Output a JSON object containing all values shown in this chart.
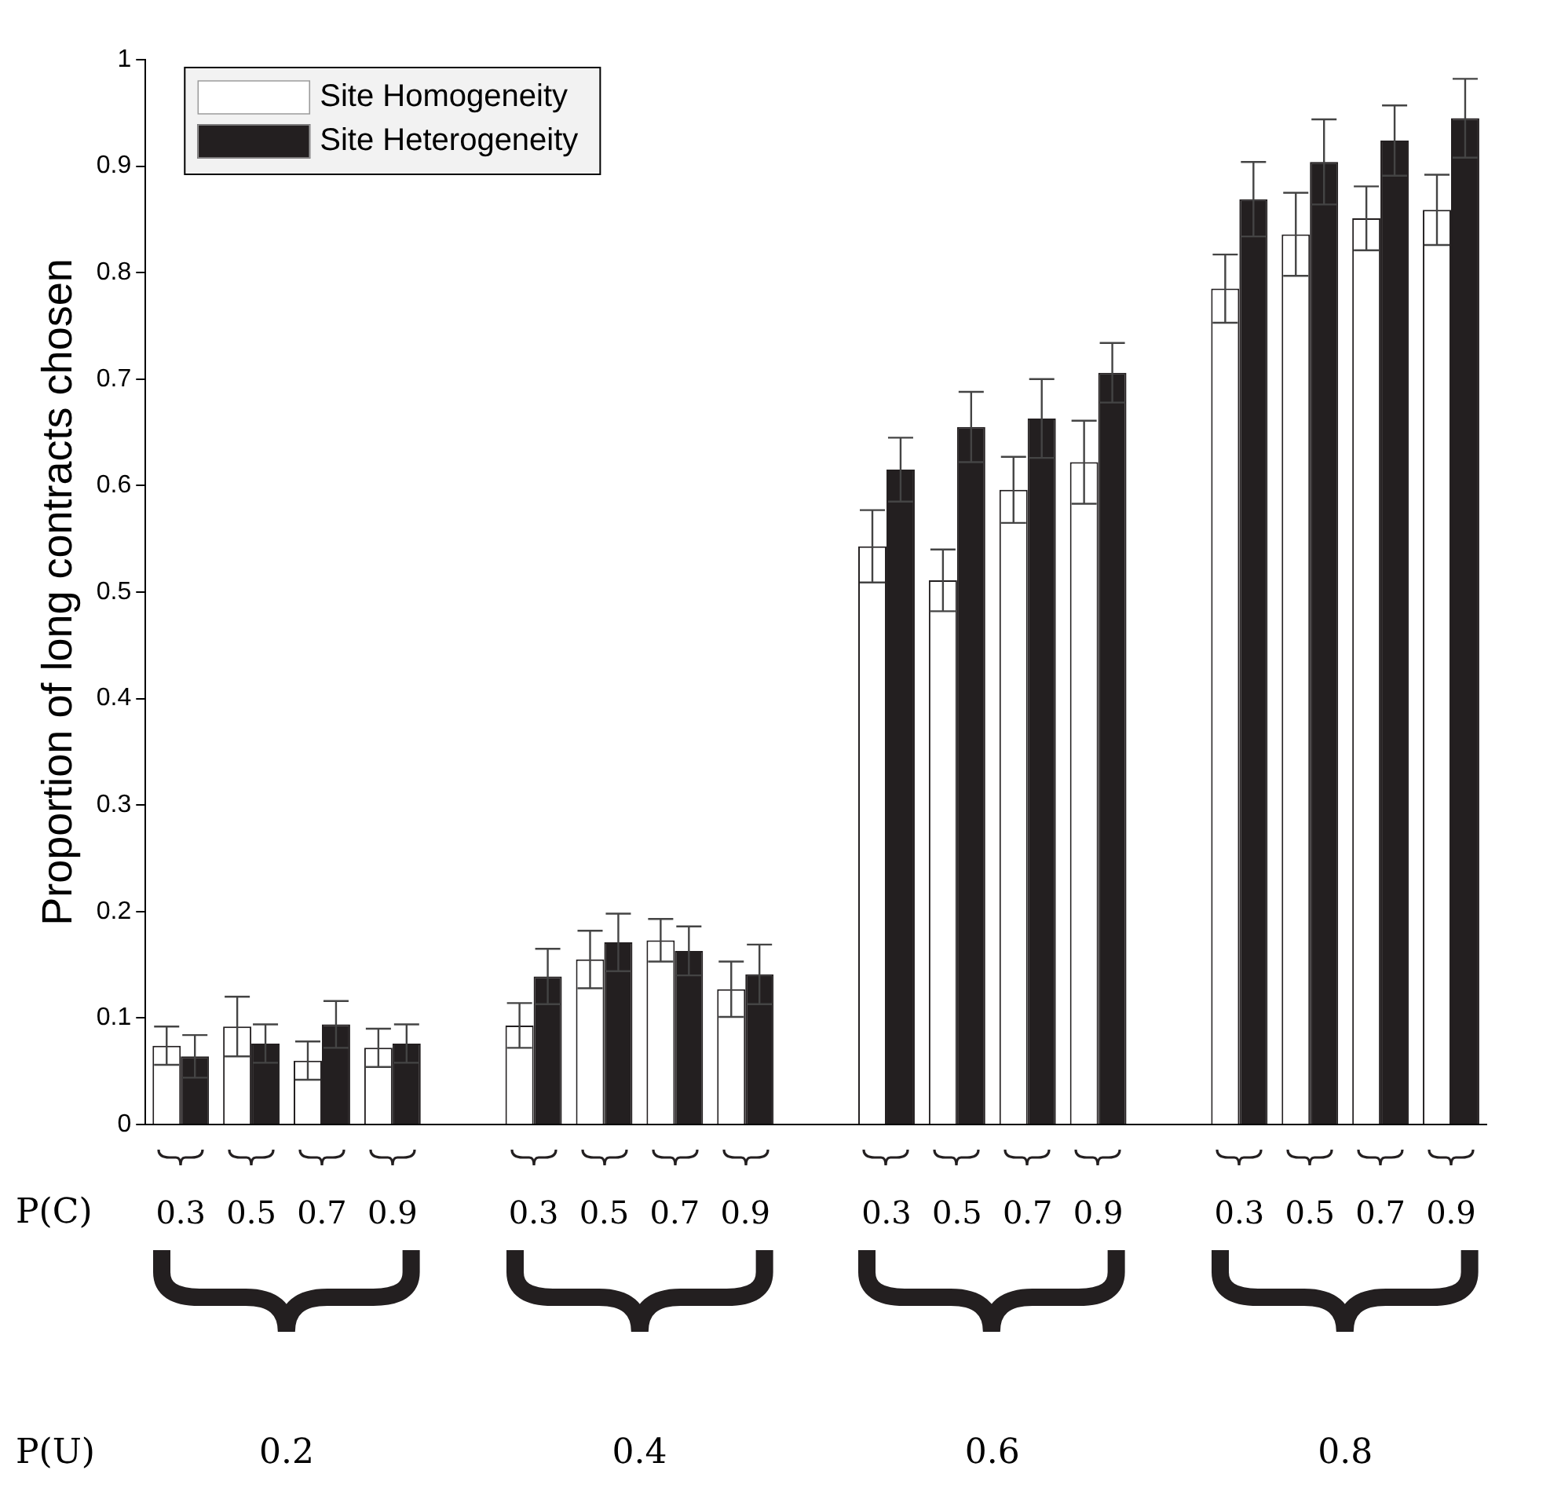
{
  "chart_data": {
    "type": "bar",
    "ylabel": "Proportion of long contracts chosen",
    "categories": [
      "0.3",
      "0.5",
      "0.7",
      "0.9",
      null,
      "0.3",
      "0.5",
      "0.7",
      "0.9",
      null,
      "0.3",
      "0.5",
      "0.7",
      "0.9",
      null,
      "0.3",
      "0.5",
      "0.7",
      "0.9"
    ],
    "series": [
      {
        "name": "Site Homogeneity",
        "color": "#ffffff",
        "values": [
          0.074,
          0.092,
          0.06,
          0.072,
          null,
          0.093,
          0.155,
          0.173,
          0.127,
          null,
          0.543,
          0.511,
          0.596,
          0.622,
          null,
          0.785,
          0.836,
          0.851,
          0.859
        ],
        "errors": [
          0.018,
          0.028,
          0.018,
          0.018,
          null,
          0.021,
          0.027,
          0.02,
          0.026,
          null,
          0.034,
          0.029,
          0.031,
          0.039,
          null,
          0.032,
          0.039,
          0.03,
          0.033
        ]
      },
      {
        "name": "Site Heterogeneity",
        "color": "#231f20",
        "values": [
          0.064,
          0.076,
          0.094,
          0.076,
          null,
          0.139,
          0.171,
          0.163,
          0.141,
          null,
          0.615,
          0.655,
          0.663,
          0.706,
          null,
          0.869,
          0.904,
          0.924,
          0.945
        ],
        "errors": [
          0.02,
          0.018,
          0.022,
          0.018,
          null,
          0.026,
          0.027,
          0.023,
          0.028,
          null,
          0.03,
          0.033,
          0.037,
          0.028,
          null,
          0.035,
          0.04,
          0.033,
          0.037
        ]
      }
    ],
    "ylim": [
      0,
      1
    ],
    "yticks": [
      0,
      0.1,
      0.2,
      0.3,
      0.4,
      0.5,
      0.6,
      0.7,
      0.8,
      0.9,
      1
    ],
    "grid": false,
    "legend": "top left",
    "annotations": [
      "P(C)",
      "P(U)",
      "0.2",
      "0.4",
      "0.6",
      "0.8"
    ]
  }
}
